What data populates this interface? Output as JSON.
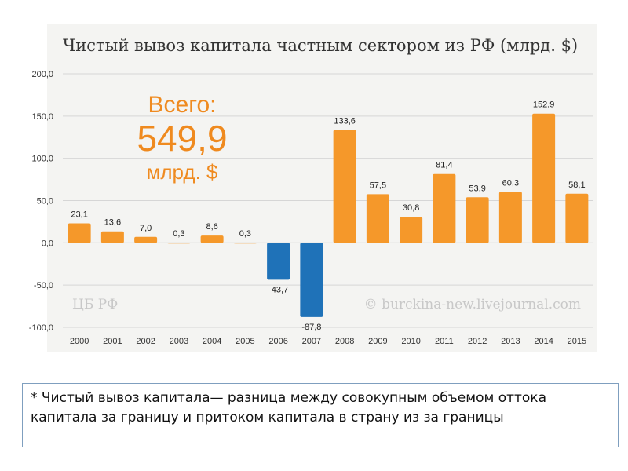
{
  "chart_data": {
    "type": "bar",
    "title": "Чистый вывоз капитала частным сектором из РФ (млрд. $)",
    "categories": [
      "2000",
      "2001",
      "2002",
      "2003",
      "2004",
      "2005",
      "2006",
      "2007",
      "2008",
      "2009",
      "2010",
      "2011",
      "2012",
      "2013",
      "2014",
      "2015"
    ],
    "values": [
      23.1,
      13.6,
      7.0,
      0.3,
      8.6,
      0.3,
      -43.7,
      -87.8,
      133.6,
      57.5,
      30.8,
      81.4,
      53.9,
      60.3,
      152.9,
      58.1
    ],
    "value_labels": [
      "23,1",
      "13,6",
      "7,0",
      "0,3",
      "8,6",
      "0,3",
      "-43,7",
      "-87,8",
      "133,6",
      "57,5",
      "30,8",
      "81,4",
      "53,9",
      "60,3",
      "152,9",
      "58,1"
    ],
    "ylim": [
      -100,
      200
    ],
    "yticks": [
      200,
      150,
      100,
      50,
      0,
      -50,
      -100
    ],
    "ytick_labels": [
      "200,0",
      "150,0",
      "100,0",
      "50,0",
      "0,0",
      "-50,0",
      "-100,0"
    ],
    "xlabel": "",
    "ylabel": "",
    "grid": true,
    "colors": {
      "positive": "#f5982a",
      "negative": "#1f72b8",
      "grid": "#d6d6d6"
    },
    "annotations": {
      "total_label": "Всего:",
      "total_value": "549,9",
      "total_unit": "млрд. $",
      "source_left": "ЦБ РФ",
      "source_right": "© burckina-new.livejournal.com"
    }
  },
  "footnote": "* Чистый вывоз капитала— разница между совокупным объемом оттока капитала за границу и притоком капитала в страну из за границы"
}
